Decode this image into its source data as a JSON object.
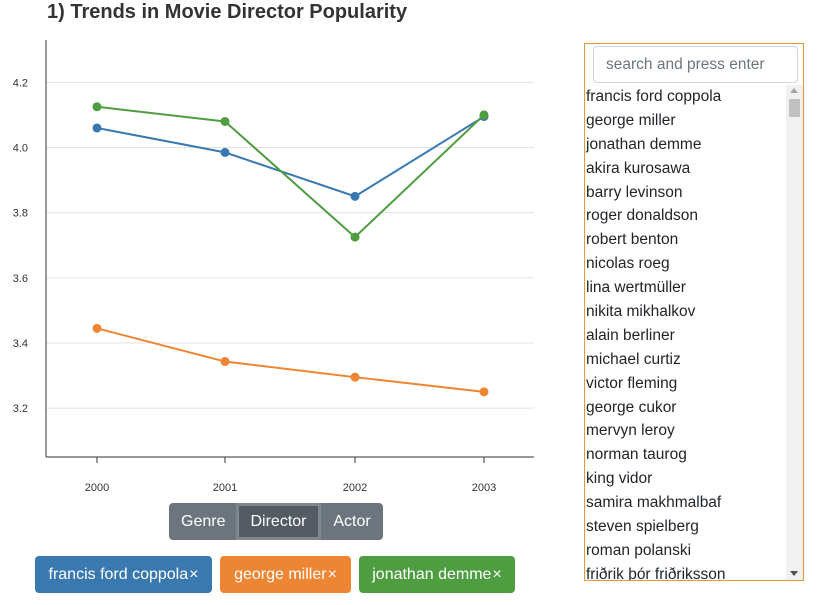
{
  "page": {
    "title": "1) Trends in Movie Director Popularity"
  },
  "chart_data": {
    "type": "line",
    "x": [
      "2000",
      "2001",
      "2002",
      "2003"
    ],
    "ylim": [
      3.05,
      4.33
    ],
    "yticks": [
      3.2,
      3.4,
      3.6,
      3.8,
      4.0,
      4.2
    ],
    "ytick_labels": [
      "3.2",
      "3.4",
      "3.6",
      "3.8",
      "4.0",
      "4.2"
    ],
    "grid": true,
    "series": [
      {
        "name": "francis ford coppola",
        "color": "#3a78b0",
        "values": [
          4.06,
          3.985,
          3.85,
          4.095
        ]
      },
      {
        "name": "george miller",
        "color": "#ee8533",
        "values": [
          3.445,
          3.343,
          3.295,
          3.25
        ]
      },
      {
        "name": "jonathan demme",
        "color": "#4f9d41",
        "values": [
          4.125,
          4.08,
          3.725,
          4.1
        ]
      }
    ]
  },
  "toggle": {
    "genre": "Genre",
    "director": "Director",
    "actor": "Actor",
    "active": "director"
  },
  "tags": [
    {
      "label": "francis ford coppola",
      "close": "×",
      "color": "#3a78b0"
    },
    {
      "label": "george miller",
      "close": "×",
      "color": "#ee8533"
    },
    {
      "label": "jonathan demme",
      "close": "×",
      "color": "#4f9d41"
    }
  ],
  "sidebar": {
    "search_placeholder": "search and press enter",
    "items": [
      "francis ford coppola",
      "george miller",
      "jonathan demme",
      "akira kurosawa",
      "barry levinson",
      "roger donaldson",
      "robert benton",
      "nicolas roeg",
      "lina wertmüller",
      "nikita mikhalkov",
      "alain berliner",
      "michael curtiz",
      "victor fleming",
      "george cukor",
      "mervyn leroy",
      "norman taurog",
      "king vidor",
      "samira makhmalbaf",
      "steven spielberg",
      "roman polanski",
      "friðrik þór friðriksson"
    ]
  }
}
